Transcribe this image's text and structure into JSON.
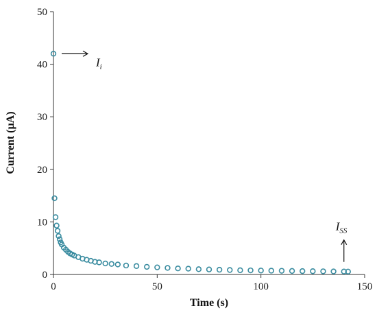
{
  "chart_data": {
    "type": "scatter",
    "title": "",
    "xlabel": "Time (s)",
    "ylabel": "Current (µA)",
    "xlim": [
      0,
      150
    ],
    "ylim": [
      0,
      50
    ],
    "x_ticks": [
      "0",
      "50",
      "100",
      "150"
    ],
    "y_ticks": [
      "0",
      "10",
      "20",
      "30",
      "40",
      "50"
    ],
    "grid": false,
    "legend": "none",
    "marker_color": "#3a8ca0",
    "series": [
      {
        "x": [
          0,
          0.5,
          1,
          1.5,
          2,
          2.5,
          3,
          3.5,
          4,
          5,
          6,
          7,
          8,
          9,
          10,
          12,
          14,
          16,
          18,
          20,
          22,
          25,
          28,
          31,
          35,
          40,
          45,
          50,
          55,
          60,
          65,
          70,
          75,
          80,
          85,
          90,
          95,
          100,
          105,
          110,
          115,
          120,
          125,
          130,
          135,
          140,
          142
        ],
        "y": [
          42.0,
          14.5,
          10.9,
          9.3,
          8.3,
          7.3,
          6.7,
          6.1,
          5.7,
          5.1,
          4.7,
          4.3,
          4.0,
          3.8,
          3.6,
          3.3,
          3.0,
          2.8,
          2.6,
          2.4,
          2.3,
          2.1,
          2.0,
          1.9,
          1.7,
          1.6,
          1.45,
          1.35,
          1.25,
          1.15,
          1.1,
          1.0,
          0.95,
          0.9,
          0.85,
          0.8,
          0.78,
          0.75,
          0.72,
          0.7,
          0.67,
          0.64,
          0.62,
          0.6,
          0.58,
          0.56,
          0.55
        ]
      }
    ],
    "annotations": [
      {
        "label": "I",
        "sub": "i",
        "x": 0,
        "y": 42.0
      },
      {
        "label": "I",
        "sub": "SS",
        "x": 140,
        "y": 0.56
      }
    ]
  }
}
